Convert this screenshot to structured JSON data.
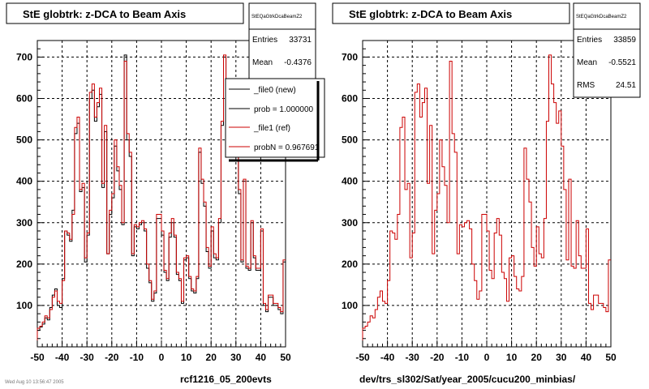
{
  "colors": {
    "new": "#000000",
    "ref": "#cc0000",
    "background": "#ffffff"
  },
  "footer": {
    "timestamp": "Wed Aug 10 13:56:47 2005"
  },
  "chart_data": [
    {
      "type": "histogram",
      "title": "StE globtrk: z-DCA to Beam Axis",
      "xlabel": "rcf1216_05_200evts",
      "ylabel": "",
      "xlim": [
        -50,
        50
      ],
      "ylim": [
        0,
        740
      ],
      "xticks": [
        -50,
        -40,
        -30,
        -20,
        -10,
        0,
        10,
        20,
        30,
        40,
        50
      ],
      "yticks": [
        100,
        200,
        300,
        400,
        500,
        600,
        700
      ],
      "grid": true,
      "stats": {
        "name": "StEQaGtrkDcaBeamZ2",
        "entries_label": "Entries",
        "entries": "33731",
        "mean_label": "Mean",
        "mean": "-0.4376"
      },
      "legend": {
        "placement": "top-right",
        "entries": [
          {
            "label": "_file0 (new)",
            "color": "#000000"
          },
          {
            "label": "prob = 1.000000",
            "color": "#000000"
          },
          {
            "label": "_file1 (ref)",
            "color": "#cc0000"
          },
          {
            "label": "probN = 0.967691",
            "color": "#cc0000"
          }
        ]
      },
      "bin_edges_start": -50,
      "bin_width": 1,
      "series": [
        {
          "name": "_file0 (new)",
          "color": "#000000",
          "values": [
            40,
            48,
            55,
            70,
            65,
            95,
            125,
            140,
            100,
            95,
            165,
            280,
            270,
            255,
            330,
            515,
            540,
            375,
            385,
            205,
            270,
            600,
            620,
            545,
            580,
            610,
            385,
            520,
            225,
            320,
            360,
            485,
            425,
            380,
            295,
            705,
            500,
            460,
            220,
            290,
            285,
            295,
            300,
            280,
            190,
            155,
            110,
            130,
            310,
            310,
            270,
            180,
            160,
            265,
            300,
            265,
            175,
            160,
            105,
            210,
            215,
            165,
            135,
            130,
            165,
            470,
            395,
            340,
            230,
            190,
            280,
            215,
            210,
            300,
            535,
            700,
            620,
            580,
            530,
            560,
            475,
            370,
            205,
            400,
            190,
            185,
            300,
            215,
            185,
            185,
            280,
            100,
            85,
            120,
            120,
            100,
            100,
            90,
            80,
            205
          ]
        },
        {
          "name": "_file1 (ref)",
          "color": "#cc0000",
          "values": [
            45,
            50,
            60,
            75,
            70,
            90,
            120,
            135,
            110,
            105,
            160,
            280,
            275,
            260,
            320,
            530,
            555,
            380,
            395,
            215,
            275,
            615,
            635,
            555,
            590,
            625,
            395,
            535,
            225,
            330,
            370,
            500,
            435,
            390,
            300,
            690,
            515,
            470,
            225,
            295,
            290,
            300,
            305,
            285,
            200,
            160,
            115,
            135,
            320,
            320,
            280,
            185,
            165,
            275,
            310,
            270,
            180,
            165,
            110,
            215,
            220,
            170,
            140,
            135,
            170,
            480,
            405,
            350,
            240,
            195,
            290,
            225,
            215,
            310,
            545,
            705,
            635,
            590,
            540,
            570,
            485,
            380,
            210,
            405,
            195,
            190,
            305,
            220,
            190,
            190,
            285,
            105,
            90,
            125,
            125,
            105,
            105,
            95,
            85,
            210
          ]
        }
      ]
    },
    {
      "type": "histogram",
      "title": "StE globtrk: z-DCA to Beam Axis",
      "xlabel": "dev/trs_sl302/Sat/year_2005/cucu200_minbias/",
      "ylabel": "",
      "xlim": [
        -50,
        50
      ],
      "ylim": [
        0,
        740
      ],
      "xticks": [
        -50,
        -40,
        -30,
        -20,
        -10,
        0,
        10,
        20,
        30,
        40,
        50
      ],
      "yticks": [
        100,
        200,
        300,
        400,
        500,
        600,
        700
      ],
      "grid": true,
      "stats": {
        "name": "StEQaGtrkDcaBeamZ2",
        "entries_label": "Entries",
        "entries": "33859",
        "mean_label": "Mean",
        "mean": "-0.5521",
        "rms_label": "RMS",
        "rms": "24.51"
      },
      "bin_edges_start": -50,
      "bin_width": 1,
      "series": [
        {
          "name": "_file1 (ref)",
          "color": "#cc0000",
          "values": [
            45,
            50,
            60,
            75,
            70,
            90,
            120,
            135,
            110,
            105,
            160,
            280,
            275,
            260,
            320,
            530,
            555,
            380,
            395,
            215,
            275,
            615,
            635,
            555,
            590,
            625,
            395,
            535,
            225,
            330,
            370,
            500,
            435,
            390,
            300,
            690,
            515,
            470,
            225,
            295,
            290,
            300,
            305,
            285,
            200,
            160,
            115,
            135,
            320,
            320,
            280,
            185,
            165,
            275,
            310,
            270,
            180,
            165,
            110,
            215,
            220,
            170,
            140,
            135,
            170,
            480,
            405,
            350,
            240,
            195,
            290,
            225,
            215,
            310,
            545,
            705,
            635,
            590,
            540,
            570,
            485,
            380,
            210,
            405,
            195,
            190,
            305,
            220,
            190,
            190,
            285,
            105,
            90,
            125,
            125,
            105,
            105,
            95,
            85,
            210
          ]
        }
      ]
    }
  ]
}
